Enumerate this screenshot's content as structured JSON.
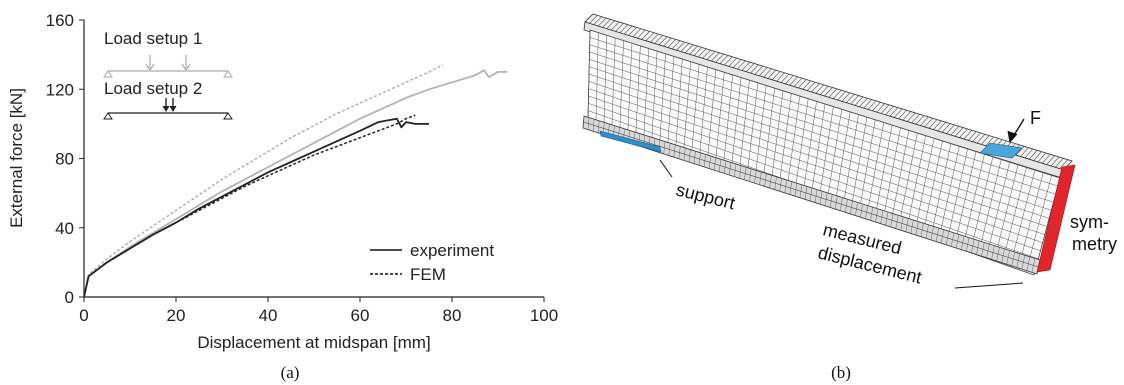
{
  "chart_data": {
    "type": "line",
    "xlabel": "Displacement at midspan [mm]",
    "ylabel": "External force [kN]",
    "xlim": [
      0,
      100
    ],
    "ylim": [
      0,
      160
    ],
    "x_ticks": [
      "0",
      "20",
      "40",
      "60",
      "80",
      "100"
    ],
    "y_ticks": [
      "0",
      "40",
      "80",
      "120",
      "160"
    ],
    "grid": false,
    "legend": {
      "position": "bottom-right",
      "entries": [
        "experiment",
        "FEM"
      ]
    },
    "load_setups": [
      "Load setup 1",
      "Load setup 2"
    ],
    "series": [
      {
        "name": "experiment",
        "setup": "Load setup 1",
        "style": "solid",
        "color": "#b3b3b3",
        "points": [
          [
            0,
            0
          ],
          [
            1,
            12
          ],
          [
            5,
            20
          ],
          [
            10,
            29
          ],
          [
            15,
            37
          ],
          [
            20,
            45
          ],
          [
            25,
            53
          ],
          [
            30,
            61
          ],
          [
            35,
            68
          ],
          [
            40,
            75
          ],
          [
            45,
            82
          ],
          [
            50,
            89
          ],
          [
            55,
            96
          ],
          [
            60,
            103
          ],
          [
            65,
            109
          ],
          [
            70,
            115
          ],
          [
            75,
            120
          ],
          [
            80,
            124
          ],
          [
            85,
            128
          ],
          [
            87,
            131
          ],
          [
            88,
            127
          ],
          [
            90,
            130
          ],
          [
            92,
            130
          ]
        ]
      },
      {
        "name": "FEM",
        "setup": "Load setup 1",
        "style": "dashed",
        "color": "#b3b3b3",
        "points": [
          [
            0,
            0
          ],
          [
            1,
            13
          ],
          [
            5,
            22
          ],
          [
            10,
            32
          ],
          [
            15,
            41
          ],
          [
            20,
            50
          ],
          [
            25,
            59
          ],
          [
            30,
            68
          ],
          [
            35,
            76
          ],
          [
            40,
            84
          ],
          [
            45,
            92
          ],
          [
            50,
            99
          ],
          [
            55,
            106
          ],
          [
            60,
            112
          ],
          [
            65,
            118
          ],
          [
            70,
            124
          ],
          [
            75,
            130
          ],
          [
            78,
            134
          ]
        ]
      },
      {
        "name": "experiment",
        "setup": "Load setup 2",
        "style": "solid",
        "color": "#222222",
        "points": [
          [
            0,
            0
          ],
          [
            1,
            12
          ],
          [
            5,
            20
          ],
          [
            10,
            28
          ],
          [
            15,
            36
          ],
          [
            20,
            43
          ],
          [
            25,
            51
          ],
          [
            30,
            58
          ],
          [
            35,
            65
          ],
          [
            40,
            72
          ],
          [
            45,
            78
          ],
          [
            50,
            84
          ],
          [
            55,
            90
          ],
          [
            60,
            96
          ],
          [
            64,
            101
          ],
          [
            66,
            102
          ],
          [
            68,
            103
          ],
          [
            69,
            98
          ],
          [
            70,
            101
          ],
          [
            72,
            100
          ],
          [
            75,
            100
          ]
        ]
      },
      {
        "name": "FEM",
        "setup": "Load setup 2",
        "style": "dashed",
        "color": "#222222",
        "points": [
          [
            0,
            0
          ],
          [
            1,
            12
          ],
          [
            5,
            20
          ],
          [
            10,
            28
          ],
          [
            15,
            36
          ],
          [
            20,
            43
          ],
          [
            25,
            50
          ],
          [
            30,
            57
          ],
          [
            35,
            64
          ],
          [
            40,
            70
          ],
          [
            45,
            76
          ],
          [
            50,
            82
          ],
          [
            55,
            87
          ],
          [
            60,
            92
          ],
          [
            65,
            97
          ],
          [
            68,
            100
          ],
          [
            70,
            103
          ],
          [
            72,
            105
          ]
        ]
      }
    ]
  },
  "panel_b": {
    "labels": {
      "force": "F",
      "support": "support",
      "measured_line1": "measured",
      "measured_line2": "displacement",
      "symmetry_line1": "sym-",
      "symmetry_line2": "metry"
    },
    "colors": {
      "support": "#2b8fc8",
      "load_patch": "#4aa6d8",
      "symmetry": "#e0262b"
    }
  },
  "captions": {
    "a": "(a)",
    "b": "(b)"
  }
}
